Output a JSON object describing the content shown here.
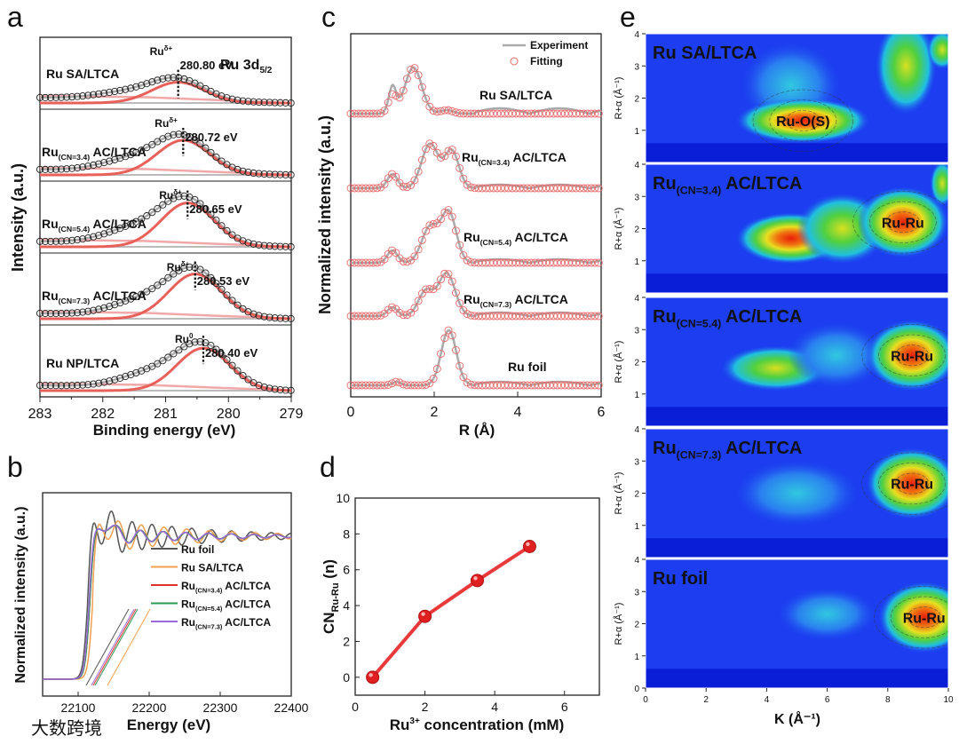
{
  "watermark": "大数跨境",
  "chart_data": [
    {
      "panel": "a",
      "type": "line",
      "xlabel": "Binding energy (eV)",
      "ylabel": "Intensity (a.u.)",
      "xlim": [
        283,
        279
      ],
      "xticks": [
        "283",
        "282",
        "281",
        "280",
        "279"
      ],
      "title": {
        "main": "Ru 3d",
        "sub": "5/2"
      },
      "series": [
        {
          "name": {
            "main": "Ru SA/LTCA",
            "sub": "",
            "rest": ""
          },
          "species": {
            "main": "Ru",
            "sup": "δ+"
          },
          "peak_ev": 280.8,
          "peak_label": "280.80 eV",
          "rel_height": 0.45
        },
        {
          "name": {
            "main": "Ru",
            "sub": "(CN=3.4)",
            "rest": " AC/LTCA"
          },
          "species": {
            "main": "Ru",
            "sup": "δ+"
          },
          "peak_ev": 280.72,
          "peak_label": "280.72 eV",
          "rel_height": 0.75
        },
        {
          "name": {
            "main": "Ru",
            "sub": "(CN=5.4)",
            "rest": " AC/LTCA"
          },
          "species": {
            "main": "Ru",
            "sup": "δ+"
          },
          "peak_ev": 280.65,
          "peak_label": "280.65 eV",
          "rel_height": 0.95
        },
        {
          "name": {
            "main": "Ru",
            "sub": "(CN=7.3)",
            "rest": " AC/LTCA"
          },
          "species": {
            "main": "Ru",
            "sup": "δ+"
          },
          "peak_ev": 280.53,
          "peak_label": "280.53 eV",
          "rel_height": 0.97
        },
        {
          "name": {
            "main": "Ru NP/LTCA",
            "sub": "",
            "rest": ""
          },
          "species": {
            "main": "Ru",
            "sup": "0"
          },
          "peak_ev": 280.4,
          "peak_label": "280.40 eV",
          "rel_height": 0.92
        }
      ]
    },
    {
      "panel": "b",
      "type": "line",
      "xlabel": "Energy (eV)",
      "ylabel": "Normalized intensity (a.u.)",
      "xlim": [
        22050,
        22400
      ],
      "xticks": [
        "22100",
        "22200",
        "22300",
        "22400"
      ],
      "series": [
        {
          "name": {
            "main": "Ru foil",
            "sub": "",
            "rest": ""
          },
          "color": "#555555",
          "edge_ev": 22113
        },
        {
          "name": {
            "main": "Ru SA/LTCA",
            "sub": "",
            "rest": ""
          },
          "color": "#f0a050",
          "edge_ev": 22120
        },
        {
          "name": {
            "main": "Ru",
            "sub": "(CN=3.4)",
            "rest": " AC/LTCA"
          },
          "color": "#e03030",
          "edge_ev": 22116
        },
        {
          "name": {
            "main": "Ru",
            "sub": "(CN=5.4)",
            "rest": " AC/LTCA"
          },
          "color": "#2a9a50",
          "edge_ev": 22116
        },
        {
          "name": {
            "main": "Ru",
            "sub": "(CN=7.3)",
            "rest": " AC/LTCA"
          },
          "color": "#9a6ad8",
          "edge_ev": 22115
        }
      ]
    },
    {
      "panel": "c",
      "type": "line",
      "xlabel": "R (Å)",
      "ylabel": "Normalized intensity (a.u.)",
      "xlim": [
        0,
        6
      ],
      "xticks": [
        "0",
        "2",
        "4",
        "6"
      ],
      "legend": {
        "position": "top-right",
        "entries": [
          "Experiment",
          "Fitting"
        ]
      },
      "series": [
        {
          "name": {
            "main": "Ru SA/LTCA",
            "sub": "",
            "rest": ""
          },
          "main_peak_r": 1.5
        },
        {
          "name": {
            "main": "Ru",
            "sub": "(CN=3.4)",
            "rest": " AC/LTCA"
          },
          "main_peak_r": 1.9
        },
        {
          "name": {
            "main": "Ru",
            "sub": "(CN=5.4)",
            "rest": " AC/LTCA"
          },
          "main_peak_r": 2.35
        },
        {
          "name": {
            "main": "Ru",
            "sub": "(CN=7.3)",
            "rest": " AC/LTCA"
          },
          "main_peak_r": 2.3
        },
        {
          "name": {
            "main": "Ru foil",
            "sub": "",
            "rest": ""
          },
          "main_peak_r": 2.35
        }
      ]
    },
    {
      "panel": "d",
      "type": "scatter",
      "xlabel": {
        "main": "Ru",
        "sup": "3+",
        "rest": " concentration (mM)"
      },
      "ylabel": {
        "main": "CN",
        "sub": "Ru-Ru",
        "rest": " (n)"
      },
      "xlim": [
        0,
        7
      ],
      "ylim": [
        -1,
        10
      ],
      "xticks": [
        "0",
        "2",
        "4",
        "6"
      ],
      "yticks": [
        "0",
        "2",
        "4",
        "6",
        "8",
        "10"
      ],
      "x": [
        0.5,
        2,
        3.5,
        5
      ],
      "y": [
        0,
        3.4,
        5.4,
        7.3
      ]
    },
    {
      "panel": "e",
      "type": "heatmap",
      "xlabel": "K (Å⁻¹)",
      "ylabel": "R+α (Å⁻¹)",
      "xlim": [
        0,
        10
      ],
      "ylim": [
        0,
        4
      ],
      "xticks": [
        "0",
        "2",
        "4",
        "6",
        "8",
        "10"
      ],
      "yticks": [
        "0",
        "1",
        "2",
        "3",
        "4"
      ],
      "maps": [
        {
          "name": {
            "main": "Ru SA/LTCA",
            "sub": "",
            "rest": ""
          },
          "feature": "Ru-O(S)",
          "k": 5.2,
          "r": 1.3
        },
        {
          "name": {
            "main": "Ru",
            "sub": "(CN=3.4)",
            "rest": " AC/LTCA"
          },
          "feature": "Ru-Ru",
          "k": 8.5,
          "r": 2.2
        },
        {
          "name": {
            "main": "Ru",
            "sub": "(CN=5.4)",
            "rest": " AC/LTCA"
          },
          "feature": "Ru-Ru",
          "k": 8.8,
          "r": 2.2
        },
        {
          "name": {
            "main": "Ru",
            "sub": "(CN=7.3)",
            "rest": " AC/LTCA"
          },
          "feature": "Ru-Ru",
          "k": 8.8,
          "r": 2.3
        },
        {
          "name": {
            "main": "Ru foil",
            "sub": "",
            "rest": ""
          },
          "feature": "Ru-Ru",
          "k": 9.2,
          "r": 2.2
        }
      ]
    }
  ],
  "panel_labels": [
    "a",
    "b",
    "c",
    "d",
    "e"
  ]
}
